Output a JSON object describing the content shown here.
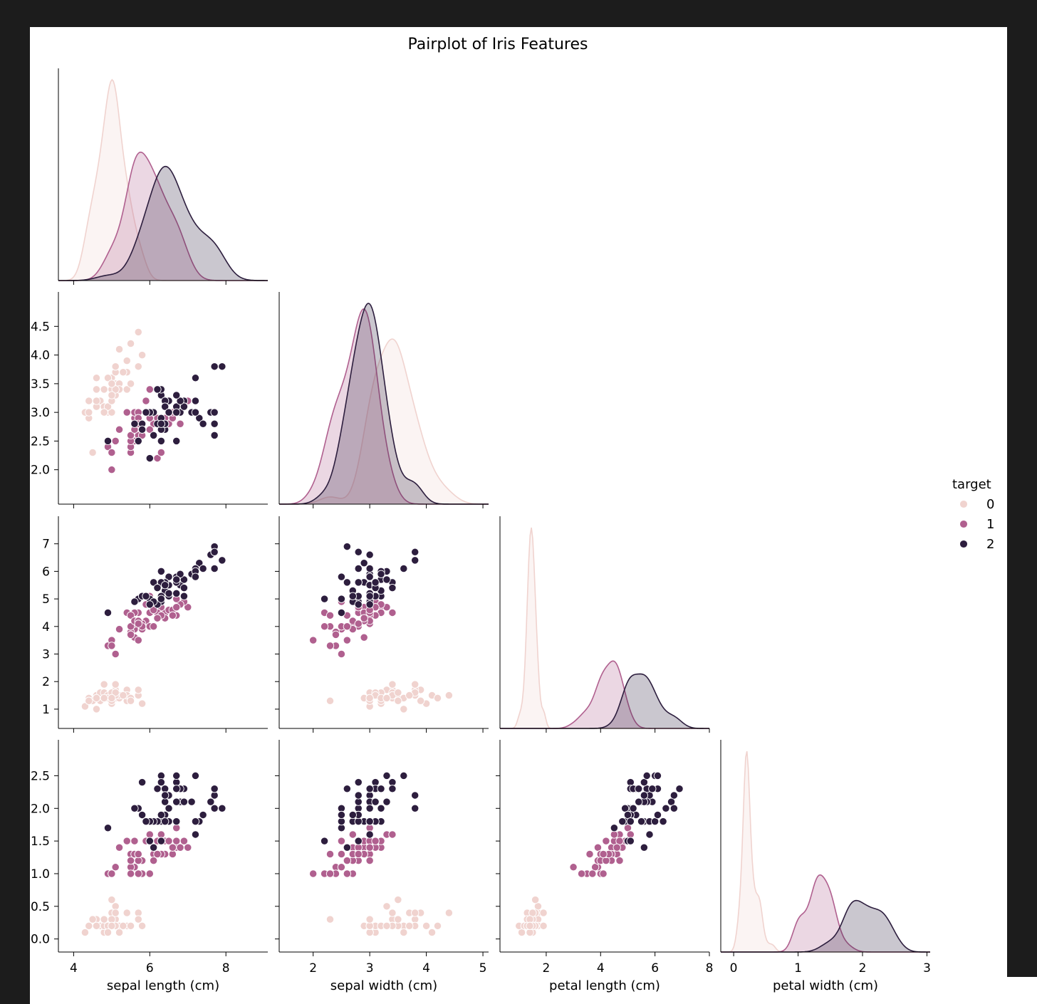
{
  "chart_data": {
    "type": "scatter",
    "title": "Pairplot of Iris Features",
    "features": [
      "sepal length (cm)",
      "sepal width (cm)",
      "petal length (cm)",
      "petal width (cm)"
    ],
    "ranges": [
      [
        3.6,
        9.1
      ],
      [
        1.4,
        5.1
      ],
      [
        0.3,
        8.0
      ],
      [
        -0.2,
        3.05
      ]
    ],
    "ticks": [
      [
        4,
        6,
        8
      ],
      [
        2.0,
        2.5,
        3.0,
        3.5,
        4.0,
        4.5
      ],
      [
        1,
        2,
        3,
        4,
        5,
        6,
        7
      ],
      [
        0.0,
        0.5,
        1.0,
        1.5,
        2.0,
        2.5
      ]
    ],
    "tick_labels": [
      [
        "4",
        "6",
        "8"
      ],
      [
        "2.0",
        "2.5",
        "3.0",
        "3.5",
        "4.0",
        "4.5"
      ],
      [
        "1",
        "2",
        "3",
        "4",
        "5",
        "6",
        "7"
      ],
      [
        "0.0",
        "0.5",
        "1.0",
        "1.5",
        "2.0",
        "2.5"
      ]
    ],
    "x_ticks": [
      [
        4,
        6,
        8
      ],
      [
        2,
        3,
        4,
        5
      ],
      [
        2,
        4,
        6,
        8
      ],
      [
        0,
        1,
        2,
        3
      ]
    ],
    "x_tick_labels": [
      [
        "4",
        "6",
        "8"
      ],
      [
        "2",
        "3",
        "4",
        "5"
      ],
      [
        "2",
        "4",
        "6",
        "8"
      ],
      [
        "0",
        "1",
        "2",
        "3"
      ]
    ],
    "legend": {
      "title": "target",
      "entries": [
        "0",
        "1",
        "2"
      ],
      "placement": "right"
    },
    "colors": {
      "0": "#f0d3cf",
      "1": "#b0608f",
      "2": "#2d1e3e"
    },
    "corner": true,
    "diag_kind": "kde",
    "classes": [
      {
        "name": "0",
        "rows": [
          [
            5.1,
            3.5,
            1.4,
            0.2
          ],
          [
            4.9,
            3.0,
            1.4,
            0.2
          ],
          [
            4.7,
            3.2,
            1.3,
            0.2
          ],
          [
            4.6,
            3.1,
            1.5,
            0.2
          ],
          [
            5.0,
            3.6,
            1.4,
            0.2
          ],
          [
            5.4,
            3.9,
            1.7,
            0.4
          ],
          [
            4.6,
            3.4,
            1.4,
            0.3
          ],
          [
            5.0,
            3.4,
            1.5,
            0.2
          ],
          [
            4.4,
            2.9,
            1.4,
            0.2
          ],
          [
            4.9,
            3.1,
            1.5,
            0.1
          ],
          [
            5.4,
            3.7,
            1.5,
            0.2
          ],
          [
            4.8,
            3.4,
            1.6,
            0.2
          ],
          [
            4.8,
            3.0,
            1.4,
            0.1
          ],
          [
            4.3,
            3.0,
            1.1,
            0.1
          ],
          [
            5.8,
            4.0,
            1.2,
            0.2
          ],
          [
            5.7,
            4.4,
            1.5,
            0.4
          ],
          [
            5.4,
            3.9,
            1.3,
            0.4
          ],
          [
            5.1,
            3.5,
            1.4,
            0.3
          ],
          [
            5.7,
            3.8,
            1.7,
            0.3
          ],
          [
            5.1,
            3.8,
            1.5,
            0.3
          ],
          [
            5.4,
            3.4,
            1.7,
            0.2
          ],
          [
            5.1,
            3.7,
            1.5,
            0.4
          ],
          [
            4.6,
            3.6,
            1.0,
            0.2
          ],
          [
            5.1,
            3.3,
            1.7,
            0.5
          ],
          [
            4.8,
            3.4,
            1.9,
            0.2
          ],
          [
            5.0,
            3.0,
            1.6,
            0.2
          ],
          [
            5.0,
            3.4,
            1.6,
            0.4
          ],
          [
            5.2,
            3.5,
            1.5,
            0.2
          ],
          [
            5.2,
            3.4,
            1.4,
            0.2
          ],
          [
            4.7,
            3.2,
            1.6,
            0.2
          ],
          [
            4.8,
            3.1,
            1.6,
            0.2
          ],
          [
            5.4,
            3.4,
            1.5,
            0.4
          ],
          [
            5.2,
            4.1,
            1.5,
            0.1
          ],
          [
            5.5,
            4.2,
            1.4,
            0.2
          ],
          [
            4.9,
            3.1,
            1.5,
            0.2
          ],
          [
            5.0,
            3.2,
            1.2,
            0.2
          ],
          [
            5.5,
            3.5,
            1.3,
            0.2
          ],
          [
            4.9,
            3.6,
            1.4,
            0.1
          ],
          [
            4.4,
            3.0,
            1.3,
            0.2
          ],
          [
            5.1,
            3.4,
            1.5,
            0.2
          ],
          [
            5.0,
            3.5,
            1.3,
            0.3
          ],
          [
            4.5,
            2.3,
            1.3,
            0.3
          ],
          [
            4.4,
            3.2,
            1.3,
            0.2
          ],
          [
            5.0,
            3.5,
            1.6,
            0.6
          ],
          [
            5.1,
            3.8,
            1.9,
            0.4
          ],
          [
            4.8,
            3.0,
            1.4,
            0.3
          ],
          [
            5.1,
            3.8,
            1.6,
            0.2
          ],
          [
            4.6,
            3.2,
            1.4,
            0.2
          ],
          [
            5.3,
            3.7,
            1.5,
            0.2
          ],
          [
            5.0,
            3.3,
            1.4,
            0.2
          ]
        ]
      },
      {
        "name": "1",
        "rows": [
          [
            7.0,
            3.2,
            4.7,
            1.4
          ],
          [
            6.4,
            3.2,
            4.5,
            1.5
          ],
          [
            6.9,
            3.1,
            4.9,
            1.5
          ],
          [
            5.5,
            2.3,
            4.0,
            1.3
          ],
          [
            6.5,
            2.8,
            4.6,
            1.5
          ],
          [
            5.7,
            2.8,
            4.5,
            1.3
          ],
          [
            6.3,
            3.3,
            4.7,
            1.6
          ],
          [
            4.9,
            2.4,
            3.3,
            1.0
          ],
          [
            6.6,
            2.9,
            4.6,
            1.3
          ],
          [
            5.2,
            2.7,
            3.9,
            1.4
          ],
          [
            5.0,
            2.0,
            3.5,
            1.0
          ],
          [
            5.9,
            3.0,
            4.2,
            1.5
          ],
          [
            6.0,
            2.2,
            4.0,
            1.0
          ],
          [
            6.1,
            2.9,
            4.7,
            1.4
          ],
          [
            5.6,
            2.9,
            3.6,
            1.3
          ],
          [
            6.7,
            3.1,
            4.4,
            1.4
          ],
          [
            5.6,
            3.0,
            4.5,
            1.5
          ],
          [
            5.8,
            2.7,
            4.1,
            1.0
          ],
          [
            6.2,
            2.2,
            4.5,
            1.5
          ],
          [
            5.6,
            2.5,
            3.9,
            1.1
          ],
          [
            5.9,
            3.2,
            4.8,
            1.8
          ],
          [
            6.1,
            2.8,
            4.0,
            1.3
          ],
          [
            6.3,
            2.5,
            4.9,
            1.5
          ],
          [
            6.1,
            2.8,
            4.7,
            1.2
          ],
          [
            6.4,
            2.9,
            4.3,
            1.3
          ],
          [
            6.6,
            3.0,
            4.4,
            1.4
          ],
          [
            6.8,
            2.8,
            4.8,
            1.4
          ],
          [
            6.7,
            3.0,
            5.0,
            1.7
          ],
          [
            6.0,
            2.9,
            4.5,
            1.5
          ],
          [
            5.7,
            2.6,
            3.5,
            1.0
          ],
          [
            5.5,
            2.4,
            3.8,
            1.1
          ],
          [
            5.5,
            2.4,
            3.7,
            1.0
          ],
          [
            5.8,
            2.7,
            3.9,
            1.2
          ],
          [
            6.0,
            2.7,
            5.1,
            1.6
          ],
          [
            5.4,
            3.0,
            4.5,
            1.5
          ],
          [
            6.0,
            3.4,
            4.5,
            1.6
          ],
          [
            6.7,
            3.1,
            4.7,
            1.5
          ],
          [
            6.3,
            2.3,
            4.4,
            1.3
          ],
          [
            5.6,
            3.0,
            4.1,
            1.3
          ],
          [
            5.5,
            2.5,
            4.0,
            1.3
          ],
          [
            5.5,
            2.6,
            4.4,
            1.2
          ],
          [
            6.1,
            3.0,
            4.6,
            1.4
          ],
          [
            5.8,
            2.6,
            4.0,
            1.2
          ],
          [
            5.0,
            2.3,
            3.3,
            1.0
          ],
          [
            5.6,
            2.7,
            4.2,
            1.3
          ],
          [
            5.7,
            3.0,
            4.2,
            1.2
          ],
          [
            5.7,
            2.9,
            4.2,
            1.3
          ],
          [
            6.2,
            2.9,
            4.3,
            1.3
          ],
          [
            5.1,
            2.5,
            3.0,
            1.1
          ],
          [
            5.7,
            2.8,
            4.1,
            1.3
          ]
        ]
      },
      {
        "name": "2",
        "rows": [
          [
            6.3,
            3.3,
            6.0,
            2.5
          ],
          [
            5.8,
            2.7,
            5.1,
            1.9
          ],
          [
            7.1,
            3.0,
            5.9,
            2.1
          ],
          [
            6.3,
            2.9,
            5.6,
            1.8
          ],
          [
            6.5,
            3.0,
            5.8,
            2.2
          ],
          [
            7.6,
            3.0,
            6.6,
            2.1
          ],
          [
            4.9,
            2.5,
            4.5,
            1.7
          ],
          [
            7.3,
            2.9,
            6.3,
            1.8
          ],
          [
            6.7,
            2.5,
            5.8,
            1.8
          ],
          [
            7.2,
            3.6,
            6.1,
            2.5
          ],
          [
            6.5,
            3.2,
            5.1,
            2.0
          ],
          [
            6.4,
            2.7,
            5.3,
            1.9
          ],
          [
            6.8,
            3.0,
            5.5,
            2.1
          ],
          [
            5.7,
            2.5,
            5.0,
            2.0
          ],
          [
            5.8,
            2.8,
            5.1,
            2.4
          ],
          [
            6.4,
            3.2,
            5.3,
            2.3
          ],
          [
            6.5,
            3.0,
            5.5,
            1.8
          ],
          [
            7.7,
            3.8,
            6.7,
            2.2
          ],
          [
            7.7,
            2.6,
            6.9,
            2.3
          ],
          [
            6.0,
            2.2,
            5.0,
            1.5
          ],
          [
            6.9,
            3.2,
            5.7,
            2.3
          ],
          [
            5.6,
            2.8,
            4.9,
            2.0
          ],
          [
            7.7,
            2.8,
            6.7,
            2.0
          ],
          [
            6.3,
            2.7,
            4.9,
            1.8
          ],
          [
            6.7,
            3.3,
            5.7,
            2.1
          ],
          [
            7.2,
            3.2,
            6.0,
            1.8
          ],
          [
            6.2,
            2.8,
            4.8,
            1.8
          ],
          [
            6.1,
            3.0,
            4.9,
            1.8
          ],
          [
            6.4,
            2.8,
            5.6,
            2.1
          ],
          [
            7.2,
            3.0,
            5.8,
            1.6
          ],
          [
            7.4,
            2.8,
            6.1,
            1.9
          ],
          [
            7.9,
            3.8,
            6.4,
            2.0
          ],
          [
            6.4,
            2.8,
            5.6,
            2.2
          ],
          [
            6.3,
            2.8,
            5.1,
            1.5
          ],
          [
            6.1,
            2.6,
            5.6,
            1.4
          ],
          [
            7.7,
            3.0,
            6.1,
            2.3
          ],
          [
            6.3,
            3.4,
            5.6,
            2.4
          ],
          [
            6.4,
            3.1,
            5.5,
            1.8
          ],
          [
            6.0,
            3.0,
            4.8,
            1.8
          ],
          [
            6.9,
            3.1,
            5.4,
            2.1
          ],
          [
            6.7,
            3.1,
            5.6,
            2.4
          ],
          [
            6.9,
            3.1,
            5.1,
            2.3
          ],
          [
            5.8,
            2.7,
            5.1,
            1.9
          ],
          [
            6.8,
            3.2,
            5.9,
            2.3
          ],
          [
            6.7,
            3.3,
            5.7,
            2.5
          ],
          [
            6.7,
            3.0,
            5.2,
            2.3
          ],
          [
            6.3,
            2.5,
            5.0,
            1.9
          ],
          [
            6.5,
            3.0,
            5.2,
            2.0
          ],
          [
            6.2,
            3.4,
            5.4,
            2.3
          ],
          [
            5.9,
            3.0,
            5.1,
            1.8
          ]
        ]
      }
    ]
  }
}
